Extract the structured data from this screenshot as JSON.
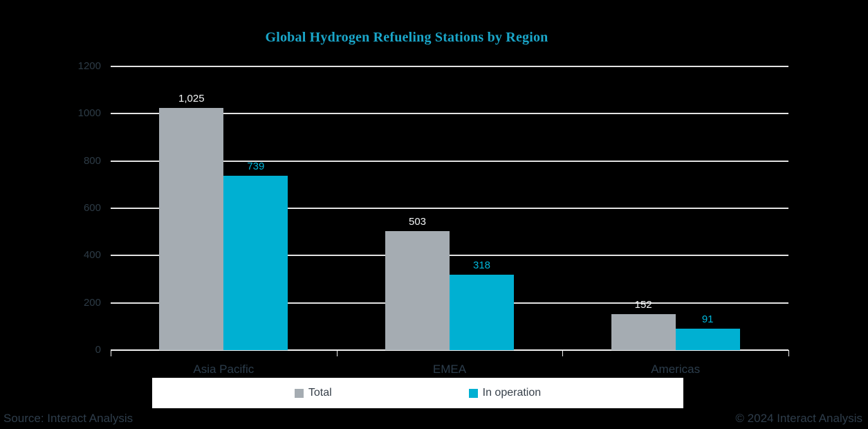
{
  "title": "Global Hydrogen Refueling Stations by Region",
  "colors": {
    "background": "#000000",
    "title": "#1aa6c9",
    "gridline": "#e3e3e3",
    "axis_line": "#f2f2f2",
    "y_tick_text": "#2d3b46",
    "category_text": "#2c3d4c",
    "legend_background": "#ffffff",
    "legend_text": "#37404a",
    "footer_text": "#2e3d4b"
  },
  "chart_data": {
    "type": "bar",
    "title": "Global Hydrogen Refueling Stations by Region",
    "categories": [
      "Asia Pacific",
      "EMEA",
      "Americas"
    ],
    "series": [
      {
        "name": "Total",
        "values": [
          1025,
          503,
          152
        ],
        "labels": [
          "1,025",
          "503",
          "152"
        ],
        "bar_color": "#a5acb2",
        "label_color": "#f2f4f5"
      },
      {
        "name": "In operation",
        "values": [
          739,
          318,
          91
        ],
        "labels": [
          "739",
          "318",
          "91"
        ],
        "bar_color": "#00b0d2",
        "label_color": "#00b6da"
      }
    ],
    "xlabel": "",
    "ylabel": "",
    "ylim": [
      0,
      1200
    ],
    "ytick_interval": 200,
    "yticks": [
      "0",
      "200",
      "400",
      "600",
      "800",
      "1000",
      "1200"
    ],
    "grid": true,
    "legend_position": "bottom"
  },
  "legend": {
    "items": [
      {
        "label": "Total",
        "color": "#a5acb2"
      },
      {
        "label": "In operation",
        "color": "#00b0d2"
      }
    ]
  },
  "footer": {
    "source": "Source: Interact Analysis",
    "copyright": "© 2024 Interact Analysis"
  }
}
